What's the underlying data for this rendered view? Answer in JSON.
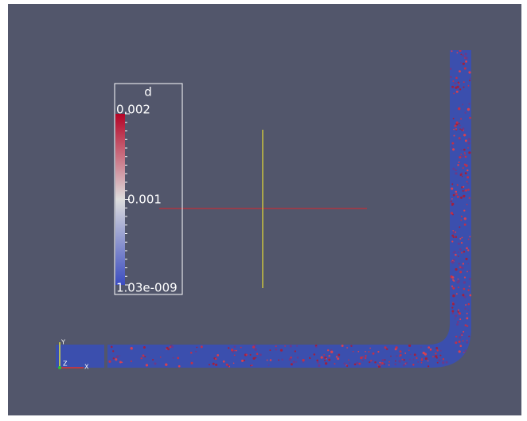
{
  "colorbar": {
    "title": "d",
    "labels": [
      "0.002",
      "0.001",
      "1.03e-009"
    ]
  },
  "axes_triad": {
    "labels": [
      "Y",
      "Z",
      "X"
    ]
  }
}
